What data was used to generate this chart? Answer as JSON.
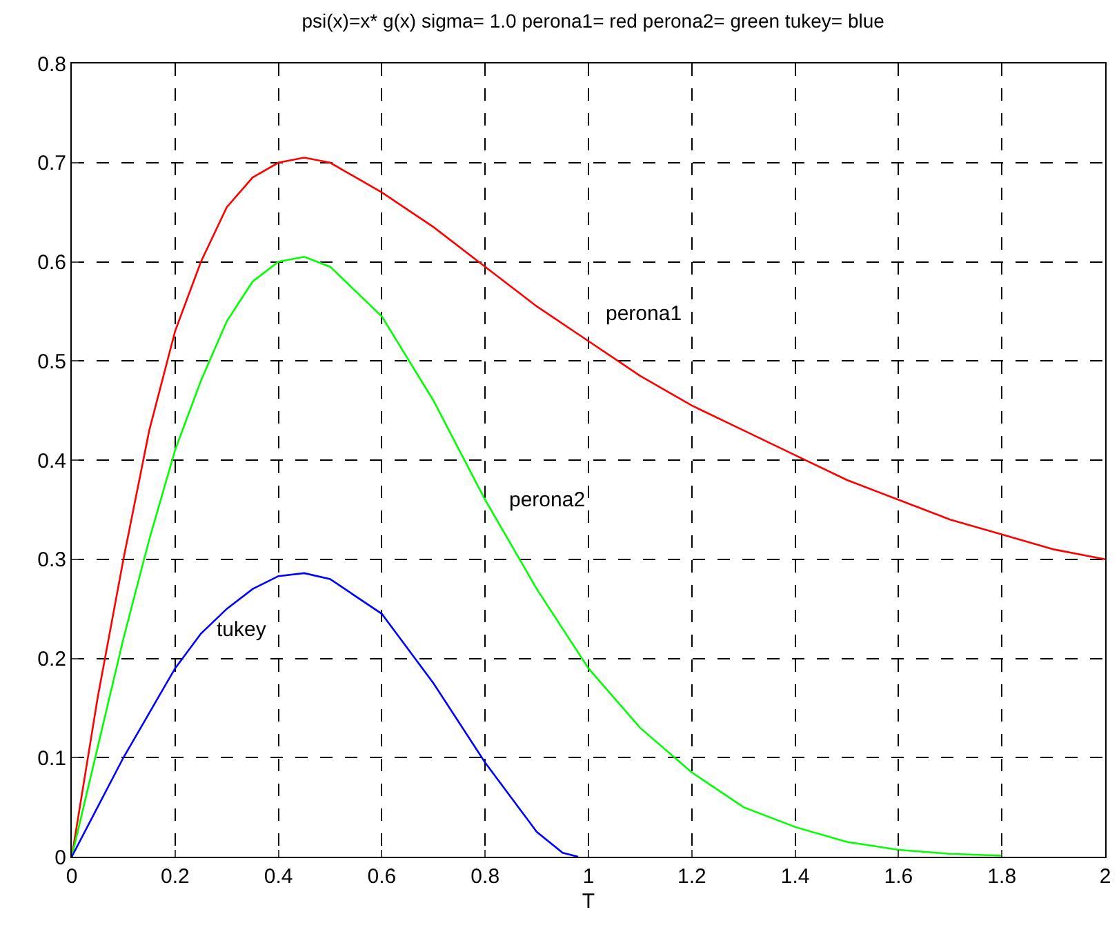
{
  "chart_data": {
    "type": "line",
    "title": "psi(x)=x* g(x) sigma= 1.0 perona1= red perona2= green tukey= blue",
    "xlabel": "T",
    "xlim": [
      0,
      2
    ],
    "xticks": [
      0,
      0.2,
      0.4,
      0.6,
      0.8,
      1,
      1.2,
      1.4,
      1.6,
      1.8,
      2
    ],
    "ylim": [
      0,
      0.8
    ],
    "yticks": [
      0,
      0.1,
      0.2,
      0.3,
      0.4,
      0.5,
      0.6,
      0.7,
      0.8
    ],
    "grid": true,
    "legend": false,
    "marker": "none",
    "line_style": "solid",
    "series": [
      {
        "name": "perona1",
        "color": "#ff0000",
        "x": [
          0,
          0.05,
          0.1,
          0.15,
          0.2,
          0.25,
          0.3,
          0.35,
          0.4,
          0.45,
          0.5,
          0.6,
          0.7,
          0.8,
          0.9,
          1,
          1.1,
          1.2,
          1.3,
          1.4,
          1.5,
          1.6,
          1.7,
          1.8,
          1.9,
          2
        ],
        "values": [
          0,
          0.16,
          0.3,
          0.43,
          0.53,
          0.6,
          0.655,
          0.685,
          0.7,
          0.705,
          0.7,
          0.67,
          0.635,
          0.595,
          0.555,
          0.52,
          0.485,
          0.455,
          0.43,
          0.405,
          0.38,
          0.36,
          0.34,
          0.325,
          0.31,
          0.3
        ]
      },
      {
        "name": "perona2",
        "color": "#00ff00",
        "x": [
          0,
          0.05,
          0.1,
          0.15,
          0.2,
          0.25,
          0.3,
          0.35,
          0.4,
          0.45,
          0.5,
          0.6,
          0.7,
          0.8,
          0.9,
          1,
          1.1,
          1.2,
          1.3,
          1.4,
          1.5,
          1.6,
          1.7,
          1.8
        ],
        "values": [
          0,
          0.11,
          0.22,
          0.32,
          0.41,
          0.48,
          0.54,
          0.58,
          0.6,
          0.605,
          0.595,
          0.545,
          0.46,
          0.36,
          0.27,
          0.19,
          0.13,
          0.085,
          0.05,
          0.03,
          0.015,
          0.007,
          0.003,
          0.001
        ]
      },
      {
        "name": "tukey",
        "color": "#0000ff",
        "x": [
          0,
          0.05,
          0.1,
          0.15,
          0.2,
          0.25,
          0.3,
          0.35,
          0.4,
          0.45,
          0.5,
          0.6,
          0.7,
          0.8,
          0.9,
          0.95,
          0.98
        ],
        "values": [
          0,
          0.05,
          0.1,
          0.145,
          0.19,
          0.225,
          0.25,
          0.27,
          0.283,
          0.286,
          0.28,
          0.245,
          0.175,
          0.095,
          0.025,
          0.004,
          0
        ]
      }
    ]
  }
}
